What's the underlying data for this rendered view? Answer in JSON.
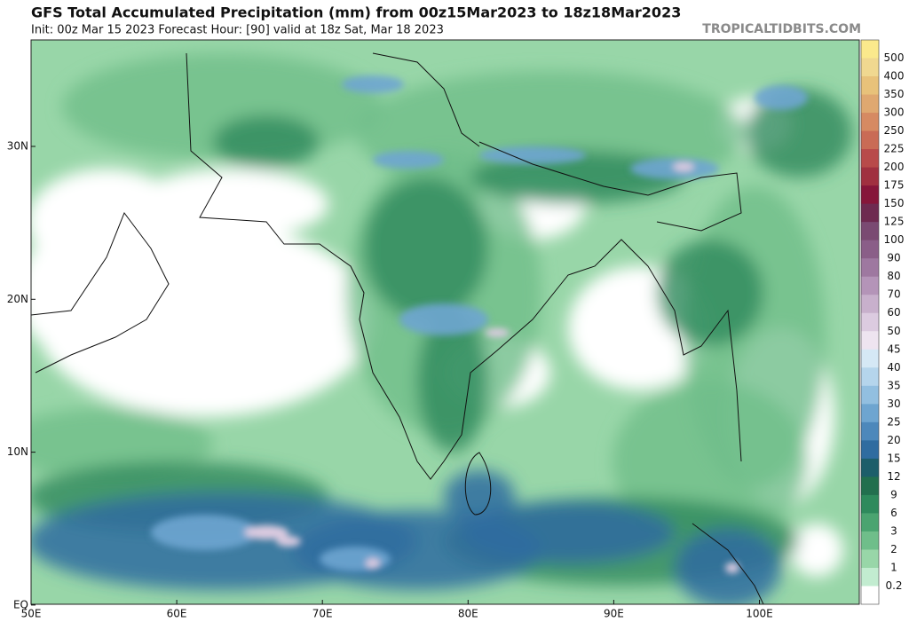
{
  "header": {
    "title": "GFS Total Accumulated Precipitation (mm) from 00z15Mar2023 to 18z18Mar2023",
    "subtitle": "Init: 00z Mar 15 2023   Forecast Hour: [90]   valid at 18z Sat, Mar 18 2023",
    "credit": "TROPICALTIDBITS.COM"
  },
  "map": {
    "lat_labels": [
      "30N",
      "20N",
      "10N",
      "EQ"
    ],
    "lon_labels": [
      "50E",
      "60E",
      "70E",
      "80E",
      "90E",
      "100E"
    ]
  },
  "colorbar": {
    "labels": [
      "500",
      "400",
      "350",
      "300",
      "250",
      "225",
      "200",
      "175",
      "150",
      "125",
      "100",
      "90",
      "80",
      "70",
      "60",
      "50",
      "45",
      "40",
      "35",
      "30",
      "25",
      "20",
      "15",
      "12",
      "9",
      "6",
      "3",
      "2",
      "1",
      "0.2"
    ],
    "colors": [
      "#fbe98c",
      "#f0d890",
      "#e8c27a",
      "#dfa870",
      "#d68a62",
      "#c96b55",
      "#b84a4a",
      "#a03040",
      "#86163a",
      "#6e2a50",
      "#7a4a72",
      "#8a5e88",
      "#9e78a0",
      "#b494b8",
      "#c8b0cc",
      "#dccbe0",
      "#eee4f0",
      "#d5e8f5",
      "#b5d5ec",
      "#92bfe0",
      "#6ea5d0",
      "#4d88bb",
      "#2f6ca0",
      "#1d5e6a",
      "#226f4e",
      "#2e8a5c",
      "#4aa470",
      "#6fbe8a",
      "#98d6a8",
      "#c2ecd0",
      "#ffffff"
    ]
  }
}
